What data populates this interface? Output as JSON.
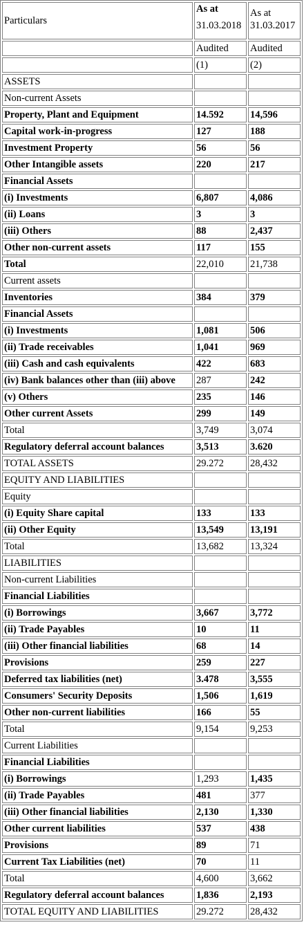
{
  "header": {
    "particulars": "Particulars",
    "col1_line1": "As at",
    "col1_line2": "31.03.2018",
    "col2_line1": "As at",
    "col2_line2": "31.03.2017",
    "col1_status": "Audited",
    "col2_status": "Audited",
    "col1_num": "(1)",
    "col2_num": "(2)"
  },
  "rows": [
    {
      "label": "ASSETS",
      "v1": "",
      "v2": "",
      "bold": false
    },
    {
      "label": "Non-current Assets",
      "v1": "",
      "v2": "",
      "bold": false
    },
    {
      "label": "Property, Plant and Equipment",
      "v1": "14.592",
      "v2": "14,596",
      "bold": true
    },
    {
      "label": "Capital work-in-progress",
      "v1": "127",
      "v2": "188",
      "bold": true
    },
    {
      "label": "Investment Property",
      "v1": "56",
      "v2": "56",
      "bold": true
    },
    {
      "label": "Other Intangible assets",
      "v1": "220",
      "v2": "217",
      "bold": true
    },
    {
      "label": "Financial Assets",
      "v1": "",
      "v2": "",
      "bold": true
    },
    {
      "label": "(i) Investments",
      "v1": "6,807",
      "v2": "4,086",
      "bold": true
    },
    {
      "label": "(ii) Loans",
      "v1": "3",
      "v2": "3",
      "bold": true
    },
    {
      "label": "(iii) Others",
      "v1": "88",
      "v2": "2,437",
      "bold": true
    },
    {
      "label": "Other non-current assets",
      "v1": "117",
      "v2": "155",
      "bold": true
    },
    {
      "label": "Total",
      "v1": "22,010",
      "v2": "21,738",
      "bold": true,
      "vbold": false
    },
    {
      "label": "Current assets",
      "v1": "",
      "v2": "",
      "bold": false
    },
    {
      "label": "Inventories",
      "v1": "384",
      "v2": "379",
      "bold": true
    },
    {
      "label": "Financial Assets",
      "v1": "",
      "v2": "",
      "bold": true
    },
    {
      "label": "(i) Investments",
      "v1": "1,081",
      "v2": "506",
      "bold": true
    },
    {
      "label": "(ii) Trade receivables",
      "v1": "1,041",
      "v2": "969",
      "bold": true
    },
    {
      "label": "(iii) Cash and cash equivalents",
      "v1": "422",
      "v2": "683",
      "bold": true
    },
    {
      "label": "(iv) Bank balances other than (iii) above",
      "v1": "287",
      "v2": "242",
      "bold": true,
      "v1bold": false
    },
    {
      "label": "(v) Others",
      "v1": "235",
      "v2": "146",
      "bold": true
    },
    {
      "label": "Other current Assets",
      "v1": "299",
      "v2": "149",
      "bold": true
    },
    {
      "label": "Total",
      "v1": "3,749",
      "v2": "3,074",
      "bold": false
    },
    {
      "label": "Regulatory deferral account balances",
      "v1": "3,513",
      "v2": "3.620",
      "bold": true
    },
    {
      "label": "TOTAL ASSETS",
      "v1": "29.272",
      "v2": "28,432",
      "bold": false
    },
    {
      "label": "EQUITY AND LIABILITIES",
      "v1": "",
      "v2": "",
      "bold": false
    },
    {
      "label": "Equity",
      "v1": "",
      "v2": "",
      "bold": false
    },
    {
      "label": "(i) Equity Share capital",
      "v1": "133",
      "v2": "133",
      "bold": true
    },
    {
      "label": "(ii) Other Equity",
      "v1": "13,549",
      "v2": "13,191",
      "bold": true
    },
    {
      "label": "Total",
      "v1": "13,682",
      "v2": "13,324",
      "bold": false
    },
    {
      "label": "LIABILITIES",
      "v1": "",
      "v2": "",
      "bold": false
    },
    {
      "label": "Non-current Liabilities",
      "v1": "",
      "v2": "",
      "bold": false
    },
    {
      "label": "Financial Liabilities",
      "v1": "",
      "v2": "",
      "bold": true
    },
    {
      "label": "(i) Borrowings",
      "v1": "3,667",
      "v2": "3,772",
      "bold": true
    },
    {
      "label": "(ii) Trade Payables",
      "v1": "10",
      "v2": "11",
      "bold": true
    },
    {
      "label": "(iii) Other financial liabilities",
      "v1": "68",
      "v2": "14",
      "bold": true
    },
    {
      "label": "Provisions",
      "v1": "259",
      "v2": "227",
      "bold": true
    },
    {
      "label": "Deferred tax liabilities (net)",
      "v1": "3.478",
      "v2": "3,555",
      "bold": true
    },
    {
      "label": "Consumers' Security Deposits",
      "v1": "1,506",
      "v2": "1,619",
      "bold": true
    },
    {
      "label": "Other non-current liabilities",
      "v1": "166",
      "v2": "55",
      "bold": true
    },
    {
      "label": "Total",
      "v1": "9,154",
      "v2": "9,253",
      "bold": false
    },
    {
      "label": "Current Liabilities",
      "v1": "",
      "v2": "",
      "bold": false
    },
    {
      "label": "Financial Liabilities",
      "v1": "",
      "v2": "",
      "bold": true
    },
    {
      "label": "(i) Borrowings",
      "v1": "1,293",
      "v2": "1,435",
      "bold": true,
      "v1bold": false
    },
    {
      "label": "(ii) Trade Payables",
      "v1": "481",
      "v2": "377",
      "bold": true,
      "v2bold": false
    },
    {
      "label": "(iii) Other financial liabilities",
      "v1": "2,130",
      "v2": "1,330",
      "bold": true
    },
    {
      "label": "Other current liabilities",
      "v1": "537",
      "v2": "438",
      "bold": true
    },
    {
      "label": "Provisions",
      "v1": "89",
      "v2": "71",
      "bold": true,
      "v2bold": false
    },
    {
      "label": "Current Tax Liabilities (net)",
      "v1": "70",
      "v2": "11",
      "bold": true,
      "v2bold": false
    },
    {
      "label": "Total",
      "v1": "4,600",
      "v2": "3,662",
      "bold": false
    },
    {
      "label": "Regulatory deferral account balances",
      "v1": "1,836",
      "v2": "2,193",
      "bold": true
    },
    {
      "label": "TOTAL EQUITY AND LIABILITIES",
      "v1": "29.272",
      "v2": "28,432",
      "bold": false
    }
  ]
}
